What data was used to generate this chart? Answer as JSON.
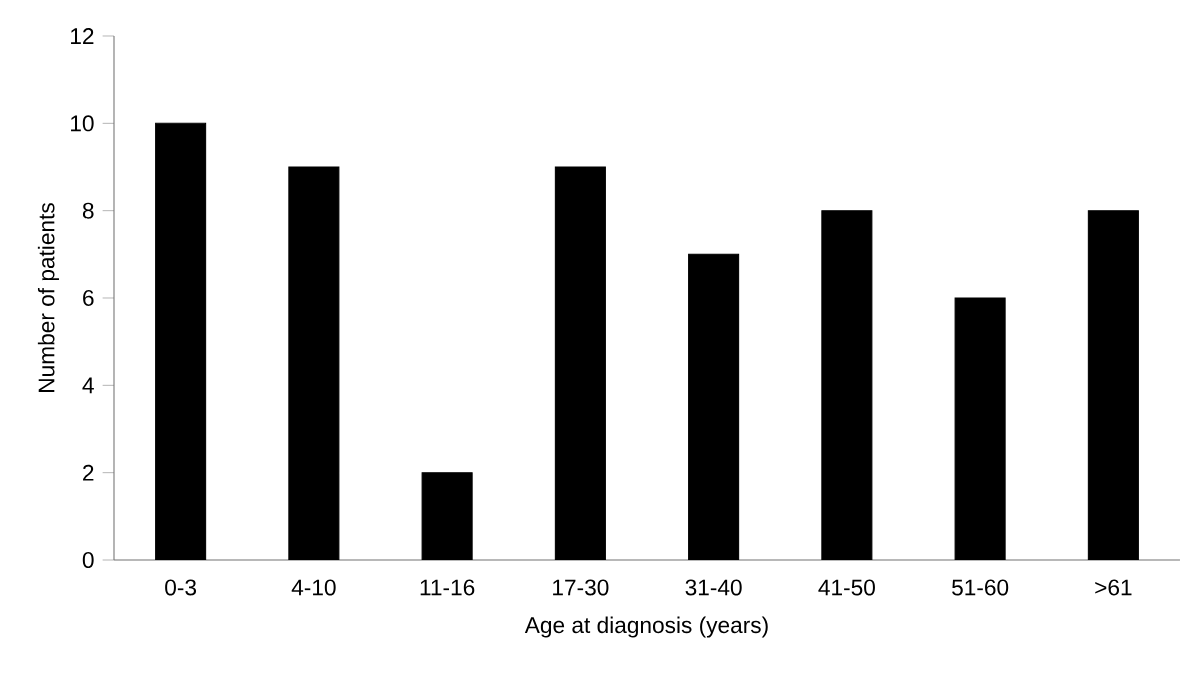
{
  "chart_data": {
    "type": "bar",
    "xlabel": "Age at diagnosis (years)",
    "ylabel": "Number of patients",
    "categories": [
      "0-3",
      "4-10",
      "11-16",
      "17-30",
      "31-40",
      "41-50",
      "51-60",
      ">61"
    ],
    "values": [
      10,
      9,
      2,
      9,
      7,
      8,
      6,
      8
    ],
    "color": "#000000",
    "ylim": [
      0,
      12
    ],
    "yticks": [
      0,
      2,
      4,
      6,
      8,
      10,
      12
    ]
  }
}
